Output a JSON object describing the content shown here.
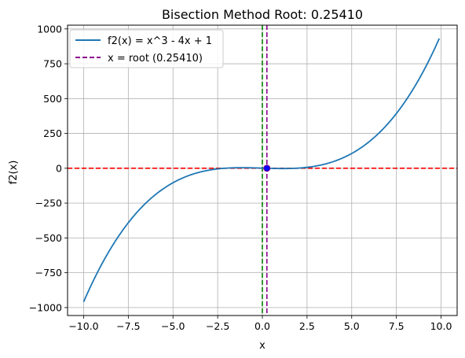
{
  "chart_data": {
    "type": "line",
    "title": "Bisection Method Root: 0.25410",
    "xlabel": "x",
    "ylabel": "f2(x)",
    "xlim": [
      -10.9,
      10.9
    ],
    "ylim": [
      -1057,
      1027
    ],
    "xticks": [
      -10.0,
      -7.5,
      -5.0,
      -2.5,
      0.0,
      2.5,
      5.0,
      7.5,
      10.0
    ],
    "xtick_labels": [
      "−10.0",
      "−7.5",
      "−5.0",
      "−2.5",
      "0.0",
      "2.5",
      "5.0",
      "7.5",
      "10.0"
    ],
    "yticks": [
      -1000,
      -750,
      -500,
      -250,
      0,
      250,
      500,
      750,
      1000
    ],
    "ytick_labels": [
      "−1000",
      "−750",
      "−500",
      "−250",
      "0",
      "250",
      "500",
      "750",
      "1000"
    ],
    "grid": true,
    "legend_position": "top-left",
    "series": [
      {
        "name": "f2(x) = x^3 - 4x + 1",
        "kind": "function",
        "x_range": [
          -10,
          9.9
        ],
        "coefficients": {
          "a3": 1,
          "a2": 0,
          "a1": -4,
          "a0": 1
        },
        "color": "#1f77b4",
        "style": "solid"
      },
      {
        "name": "x = root (0.25410)",
        "kind": "vline",
        "x": 0.2541,
        "color": "#8b008b",
        "style": "dashed"
      }
    ],
    "reference_lines": [
      {
        "kind": "hline",
        "y": 0,
        "color": "#ff0000",
        "style": "dashed"
      },
      {
        "kind": "vline",
        "x": 0,
        "color": "#008000",
        "style": "dashed"
      }
    ],
    "root_point": {
      "x": 0.2541,
      "y": 0,
      "color": "#0000ff",
      "edge": "#8b008b"
    }
  }
}
